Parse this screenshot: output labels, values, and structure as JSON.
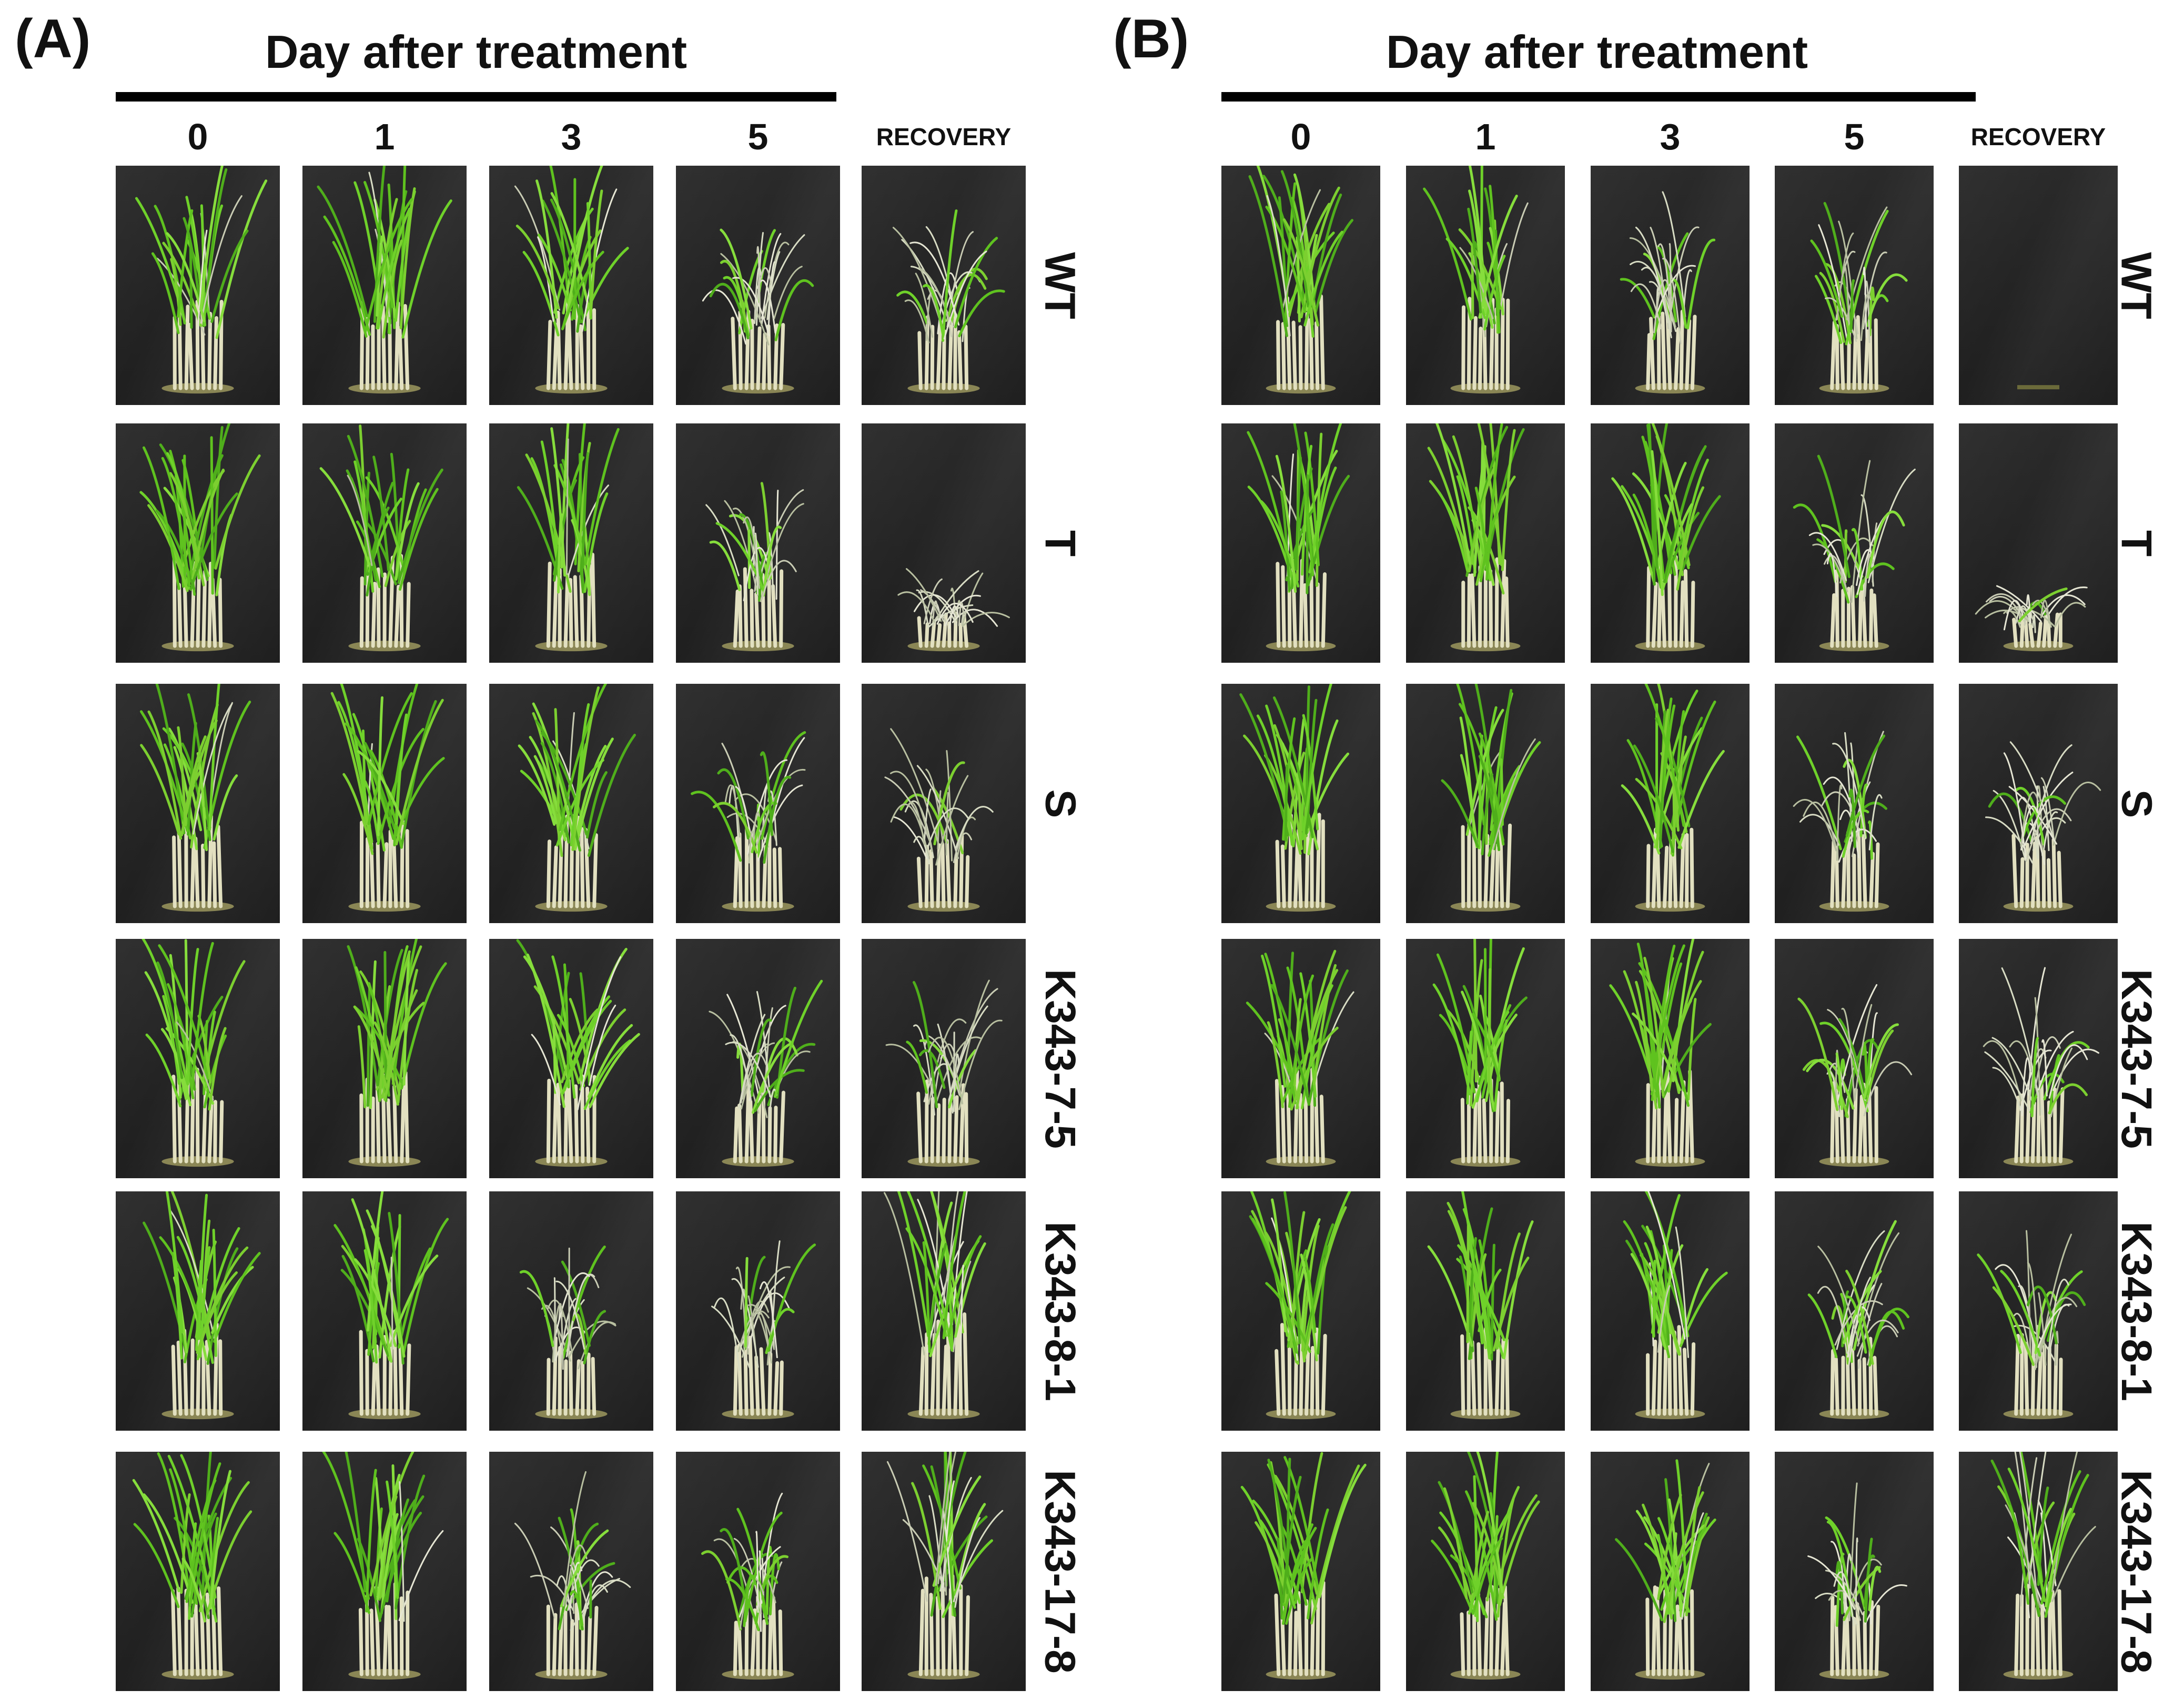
{
  "panels": [
    {
      "label": "(A)",
      "header": "Day after treatment",
      "columns": [
        "0",
        "1",
        "3",
        "5",
        "RECOVERY"
      ],
      "rows": [
        "WT",
        "T",
        "S",
        "K343-7-5",
        "K343-8-1",
        "K343-17-8"
      ]
    },
    {
      "label": "(B)",
      "header": "Day after treatment",
      "columns": [
        "0",
        "1",
        "3",
        "5",
        "RECOVERY"
      ],
      "rows": [
        "WT",
        "T",
        "S",
        "K343-7-5",
        "K343-8-1",
        "K343-17-8"
      ]
    }
  ],
  "photo_grid": [
    [
      "healthy",
      "healthy",
      "healthy-light",
      "wilting",
      "wilted-partial"
    ],
    [
      "healthy",
      "healthy",
      "healthy",
      "wilting",
      "dead"
    ],
    [
      "healthy",
      "healthy",
      "healthy",
      "wilting",
      "wilted"
    ],
    [
      "healthy",
      "healthy",
      "healthy",
      "wilting",
      "wilted-partial"
    ],
    [
      "healthy",
      "healthy",
      "wilting",
      "wilting",
      "recovered"
    ],
    [
      "healthy",
      "healthy",
      "wilting",
      "wilting",
      "recovered"
    ]
  ],
  "photo_grid_b": [
    [
      "healthy",
      "healthy",
      "wilting",
      "wilting",
      "empty"
    ],
    [
      "healthy",
      "healthy",
      "healthy",
      "wilting",
      "dead"
    ],
    [
      "healthy",
      "healthy",
      "healthy",
      "wilting",
      "wilted"
    ],
    [
      "healthy",
      "healthy",
      "healthy",
      "wilting",
      "wilted-partial"
    ],
    [
      "healthy",
      "healthy",
      "healthy",
      "wilting",
      "wilted-partial"
    ],
    [
      "healthy",
      "healthy",
      "healthy",
      "wilting",
      "recovered"
    ]
  ],
  "colors": {
    "background": "#ffffff",
    "photo_backdrop": "#232323",
    "leaf_green": "#6fd12a",
    "leaf_pale": "#d8dcc4",
    "stem": "#e2e0c0"
  }
}
